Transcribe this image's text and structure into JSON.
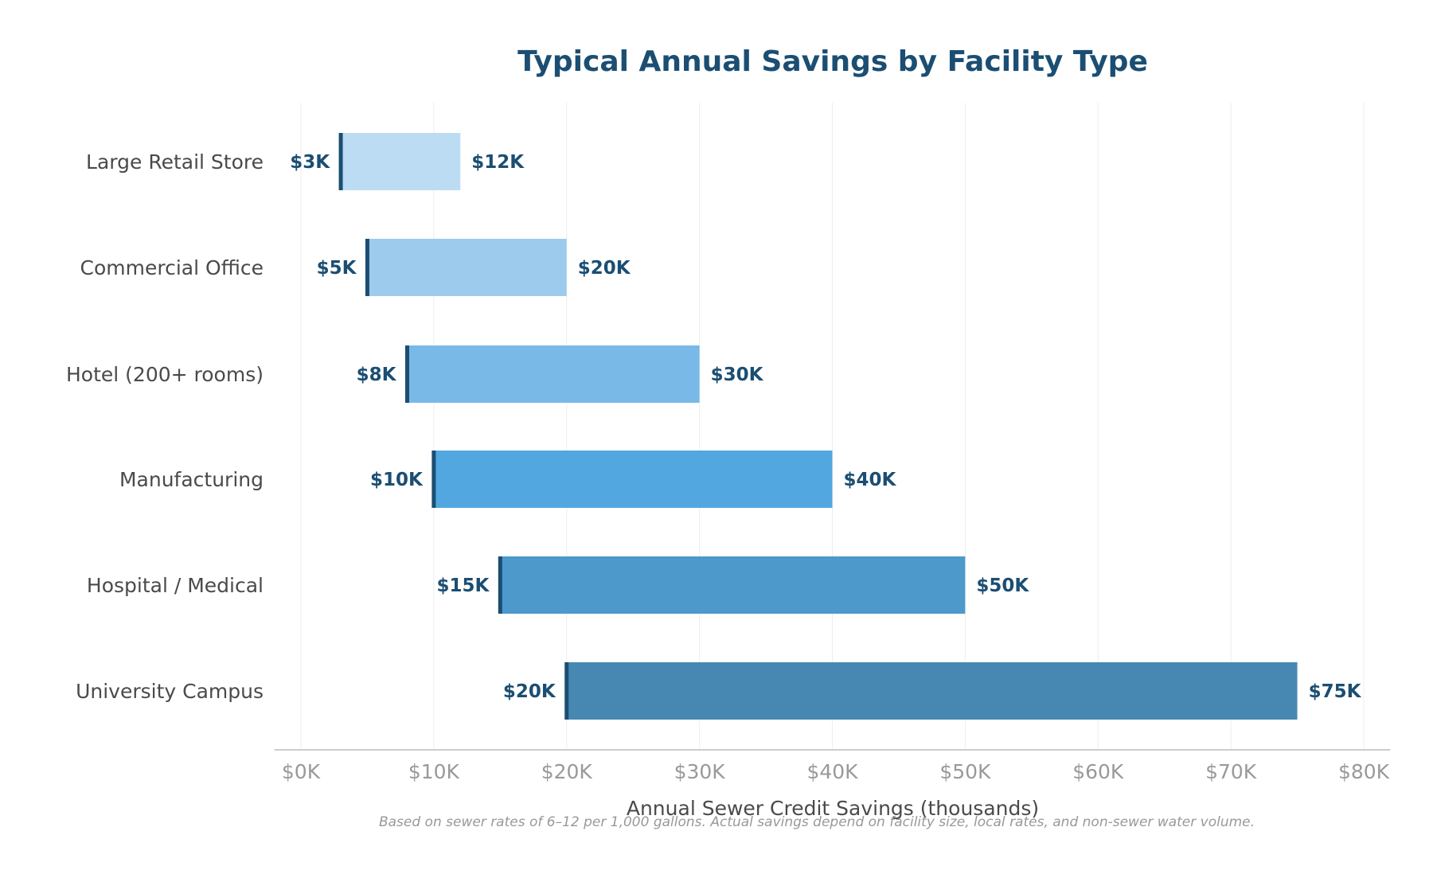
{
  "chart_data": {
    "type": "bar",
    "orientation": "horizontal",
    "style": "range (floating) bars with start marker",
    "title": "Typical Annual Savings by Facility Type",
    "xlabel": "Annual Sewer Credit Savings (thousands)",
    "ylabel": "",
    "footnote": "Based on sewer rates of 6–12 per 1,000 gallons. Actual savings depend on facility size, local rates, and non-sewer water volume.",
    "categories": [
      "Large Retail Store",
      "Commercial Office",
      "Hotel (200+ rooms)",
      "Manufacturing",
      "Hospital / Medical",
      "University Campus"
    ],
    "low": [
      3,
      5,
      8,
      10,
      15,
      20
    ],
    "high": [
      12,
      20,
      30,
      40,
      50,
      75
    ],
    "low_labels": [
      "$3K",
      "$5K",
      "$8K",
      "$10K",
      "$15K",
      "$20K"
    ],
    "high_labels": [
      "$12K",
      "$20K",
      "$30K",
      "$40K",
      "$50K",
      "$75K"
    ],
    "xlim": [
      -2,
      82
    ],
    "xticks": [
      0,
      10,
      20,
      30,
      40,
      50,
      60,
      70,
      80
    ],
    "xtick_labels": [
      "$0K",
      "$10K",
      "$20K",
      "$30K",
      "$40K",
      "$50K",
      "$60K",
      "$70K",
      "$80K"
    ],
    "grid": "vertical",
    "colors": [
      "#bbdcf2",
      "#9ccbee",
      "#79b9e7",
      "#52a7e0",
      "#4d99cb",
      "#4788b3"
    ],
    "marker_color": "#1b4e72"
  }
}
